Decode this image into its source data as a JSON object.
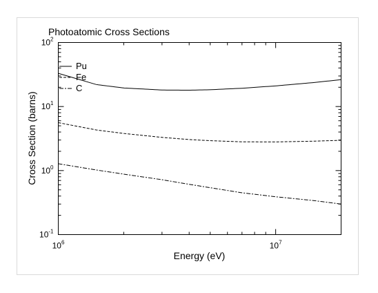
{
  "chart_data": {
    "type": "line",
    "title": "Photoatomic Cross Sections",
    "xlabel": "Energy (eV)",
    "ylabel": "Cross Section (barns)",
    "xscale": "log",
    "yscale": "log",
    "xlim": [
      1000000,
      20000000
    ],
    "ylim": [
      0.1,
      100
    ],
    "grid": false,
    "legend_position": "top-left",
    "x_ticks": [
      {
        "value": 1000000,
        "base": "10",
        "exp": "6"
      },
      {
        "value": 10000000,
        "base": "10",
        "exp": "7"
      }
    ],
    "y_ticks": [
      {
        "value": 0.1,
        "base": "10",
        "exp": "-1"
      },
      {
        "value": 1,
        "base": "10",
        "exp": "0"
      },
      {
        "value": 10,
        "base": "10",
        "exp": "1"
      },
      {
        "value": 100,
        "base": "10",
        "exp": "2"
      }
    ],
    "series": [
      {
        "name": "Pu",
        "dash": "solid",
        "x": [
          1000000,
          1500000,
          2000000,
          3000000,
          4000000,
          5000000,
          7000000,
          10000000,
          15000000,
          20000000
        ],
        "y": [
          33,
          22,
          19.5,
          18.1,
          18.0,
          18.3,
          19.3,
          21.0,
          23.7,
          26.3
        ]
      },
      {
        "name": "Fe",
        "dash": "dashed",
        "x": [
          1000000,
          1500000,
          2000000,
          3000000,
          4000000,
          5000000,
          7000000,
          10000000,
          15000000,
          20000000
        ],
        "y": [
          5.6,
          4.3,
          3.8,
          3.3,
          3.05,
          2.93,
          2.81,
          2.8,
          2.88,
          2.97
        ]
      },
      {
        "name": "C",
        "dash": "dashdot",
        "x": [
          1000000,
          1500000,
          2000000,
          3000000,
          4000000,
          5000000,
          7000000,
          10000000,
          15000000,
          20000000
        ],
        "y": [
          1.28,
          1.02,
          0.88,
          0.72,
          0.61,
          0.54,
          0.45,
          0.39,
          0.34,
          0.3
        ]
      }
    ]
  }
}
